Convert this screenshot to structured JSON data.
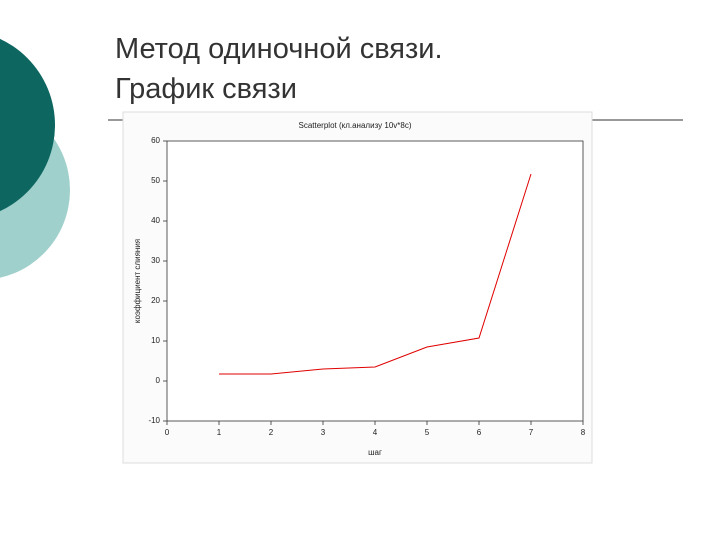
{
  "slide": {
    "title": [
      "Метод одиночной связи.",
      "График связи"
    ]
  },
  "chart_data": {
    "type": "line",
    "title": "Scatterplot (кл.анализу 10v*8c)",
    "x_label": "шаг",
    "y_label": "коэффициент слияния",
    "x": [
      1,
      2,
      3,
      4,
      5,
      6,
      7
    ],
    "series": [
      {
        "color": "#e00000",
        "values": [
          1.75,
          1.75,
          3,
          3.5,
          8.5,
          10.75,
          51.75
        ]
      }
    ],
    "xlim": [
      0,
      8
    ],
    "xticks": [
      0,
      1,
      2,
      3,
      4,
      5,
      6,
      7,
      8
    ],
    "ylim": [
      -10,
      60
    ],
    "yticks": [
      -10,
      0,
      10,
      20,
      30,
      40,
      50,
      60
    ]
  }
}
